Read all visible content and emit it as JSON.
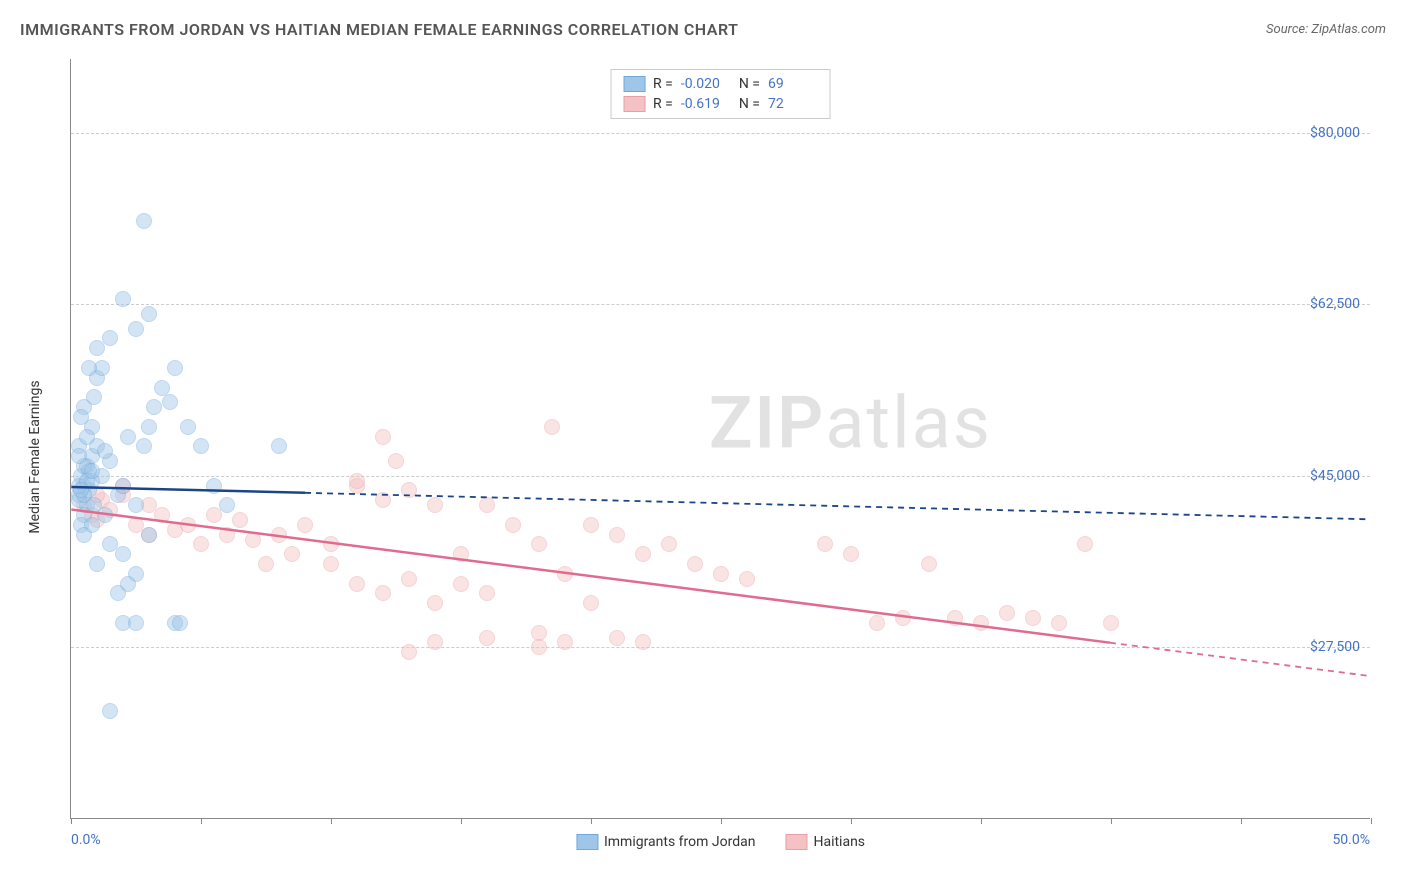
{
  "title": "IMMIGRANTS FROM JORDAN VS HAITIAN MEDIAN FEMALE EARNINGS CORRELATION CHART",
  "source": "Source: ZipAtlas.com",
  "watermark_a": "ZIP",
  "watermark_b": "atlas",
  "y_title": "Median Female Earnings",
  "x_min_label": "0.0%",
  "x_max_label": "50.0%",
  "chart": {
    "type": "scatter",
    "xlim": [
      0,
      50
    ],
    "ylim": [
      10000,
      87500
    ],
    "x_ticks": [
      0,
      5,
      10,
      15,
      20,
      25,
      30,
      35,
      40,
      45,
      50
    ],
    "y_ticks": [
      27500,
      45000,
      62500,
      80000
    ],
    "y_tick_labels": [
      "$27,500",
      "$45,000",
      "$62,500",
      "$80,000"
    ],
    "grid_color": "#cccccc",
    "background_color": "#ffffff",
    "marker_radius": 8,
    "marker_opacity": 0.45,
    "series": {
      "jordan": {
        "label": "Immigrants from Jordan",
        "fill_color": "#9fc5e8",
        "stroke_color": "#6fa8dc",
        "line_color": "#1c4587",
        "R_label": "R =",
        "R_value": "-0.020",
        "N_label": "N =",
        "N_value": "69",
        "trend": {
          "x1": 0,
          "y1": 43800,
          "x2": 50,
          "y2": 40500,
          "solid_until_x": 9
        },
        "points": [
          [
            0.3,
            43000
          ],
          [
            0.5,
            44000
          ],
          [
            0.6,
            42000
          ],
          [
            0.4,
            45000
          ],
          [
            0.7,
            43500
          ],
          [
            0.5,
            41000
          ],
          [
            0.8,
            44500
          ],
          [
            0.3,
            42500
          ],
          [
            0.6,
            46000
          ],
          [
            0.4,
            40000
          ],
          [
            0.7,
            45500
          ],
          [
            0.5,
            43000
          ],
          [
            0.8,
            47000
          ],
          [
            0.3,
            44000
          ],
          [
            0.9,
            42000
          ],
          [
            1.0,
            48000
          ],
          [
            1.2,
            45000
          ],
          [
            1.5,
            46500
          ],
          [
            1.8,
            43000
          ],
          [
            1.3,
            47500
          ],
          [
            2.0,
            44000
          ],
          [
            2.2,
            49000
          ],
          [
            2.5,
            42000
          ],
          [
            2.8,
            48000
          ],
          [
            3.0,
            50000
          ],
          [
            3.2,
            52000
          ],
          [
            3.5,
            54000
          ],
          [
            3.8,
            52500
          ],
          [
            4.0,
            56000
          ],
          [
            2.5,
            60000
          ],
          [
            3.0,
            61500
          ],
          [
            1.0,
            58000
          ],
          [
            1.5,
            59000
          ],
          [
            2.0,
            63000
          ],
          [
            2.8,
            71000
          ],
          [
            2.0,
            37000
          ],
          [
            1.5,
            38000
          ],
          [
            1.0,
            36000
          ],
          [
            2.5,
            35000
          ],
          [
            3.0,
            39000
          ],
          [
            1.8,
            33000
          ],
          [
            2.2,
            34000
          ],
          [
            0.8,
            40000
          ],
          [
            1.3,
            41000
          ],
          [
            0.5,
            39000
          ],
          [
            4.5,
            50000
          ],
          [
            5.0,
            48000
          ],
          [
            5.5,
            44000
          ],
          [
            4.0,
            30000
          ],
          [
            4.2,
            30000
          ],
          [
            2.0,
            30000
          ],
          [
            2.5,
            30000
          ],
          [
            1.5,
            21000
          ],
          [
            1.0,
            55000
          ],
          [
            1.2,
            56000
          ],
          [
            0.5,
            52000
          ],
          [
            0.8,
            50000
          ],
          [
            0.3,
            48000
          ],
          [
            0.6,
            49000
          ],
          [
            0.4,
            51000
          ],
          [
            0.9,
            53000
          ],
          [
            0.7,
            56000
          ],
          [
            8.0,
            48000
          ],
          [
            6.0,
            42000
          ],
          [
            0.5,
            46000
          ],
          [
            0.3,
            47000
          ],
          [
            0.6,
            44500
          ],
          [
            0.4,
            43500
          ],
          [
            0.8,
            45500
          ]
        ]
      },
      "haitian": {
        "label": "Haitians",
        "fill_color": "#f4c2c2",
        "stroke_color": "#e8a0a8",
        "line_color": "#e06b8f",
        "R_label": "R =",
        "R_value": "-0.619",
        "N_label": "N =",
        "N_value": "72",
        "trend": {
          "x1": 0,
          "y1": 41500,
          "x2": 50,
          "y2": 24500,
          "solid_until_x": 40
        },
        "points": [
          [
            0.5,
            42000
          ],
          [
            0.8,
            41000
          ],
          [
            1.0,
            40500
          ],
          [
            1.2,
            42500
          ],
          [
            1.5,
            41500
          ],
          [
            2.0,
            43000
          ],
          [
            2.5,
            40000
          ],
          [
            3.0,
            39000
          ],
          [
            3.5,
            41000
          ],
          [
            4.0,
            39500
          ],
          [
            4.5,
            40000
          ],
          [
            5.0,
            38000
          ],
          [
            5.5,
            41000
          ],
          [
            6.0,
            39000
          ],
          [
            6.5,
            40500
          ],
          [
            7.0,
            38500
          ],
          [
            7.5,
            36000
          ],
          [
            8.0,
            39000
          ],
          [
            8.5,
            37000
          ],
          [
            9.0,
            40000
          ],
          [
            10.0,
            38000
          ],
          [
            11.0,
            44000
          ],
          [
            12.0,
            42500
          ],
          [
            12.5,
            46500
          ],
          [
            13.0,
            43500
          ],
          [
            14.0,
            42000
          ],
          [
            15.0,
            37000
          ],
          [
            16.0,
            42000
          ],
          [
            17.0,
            40000
          ],
          [
            18.0,
            38000
          ],
          [
            18.5,
            50000
          ],
          [
            19.0,
            35000
          ],
          [
            20.0,
            40000
          ],
          [
            21.0,
            39000
          ],
          [
            22.0,
            37000
          ],
          [
            23.0,
            38000
          ],
          [
            24.0,
            36000
          ],
          [
            10.0,
            36000
          ],
          [
            11.0,
            34000
          ],
          [
            12.0,
            33000
          ],
          [
            13.0,
            34500
          ],
          [
            14.0,
            32000
          ],
          [
            15.0,
            34000
          ],
          [
            16.0,
            33000
          ],
          [
            13.0,
            27000
          ],
          [
            14.0,
            28000
          ],
          [
            16.0,
            28500
          ],
          [
            18.0,
            29000
          ],
          [
            18.0,
            27500
          ],
          [
            19.0,
            28000
          ],
          [
            20.0,
            32000
          ],
          [
            21.0,
            28500
          ],
          [
            22.0,
            28000
          ],
          [
            25.0,
            35000
          ],
          [
            26.0,
            34500
          ],
          [
            29.0,
            38000
          ],
          [
            30.0,
            37000
          ],
          [
            31.0,
            30000
          ],
          [
            32.0,
            30500
          ],
          [
            33.0,
            36000
          ],
          [
            34.0,
            30500
          ],
          [
            35.0,
            30000
          ],
          [
            36.0,
            31000
          ],
          [
            37.0,
            30500
          ],
          [
            38.0,
            30000
          ],
          [
            39.0,
            38000
          ],
          [
            40.0,
            30000
          ],
          [
            11.0,
            44500
          ],
          [
            12.0,
            49000
          ],
          [
            1.0,
            43000
          ],
          [
            2.0,
            44000
          ],
          [
            3.0,
            42000
          ]
        ]
      }
    }
  }
}
